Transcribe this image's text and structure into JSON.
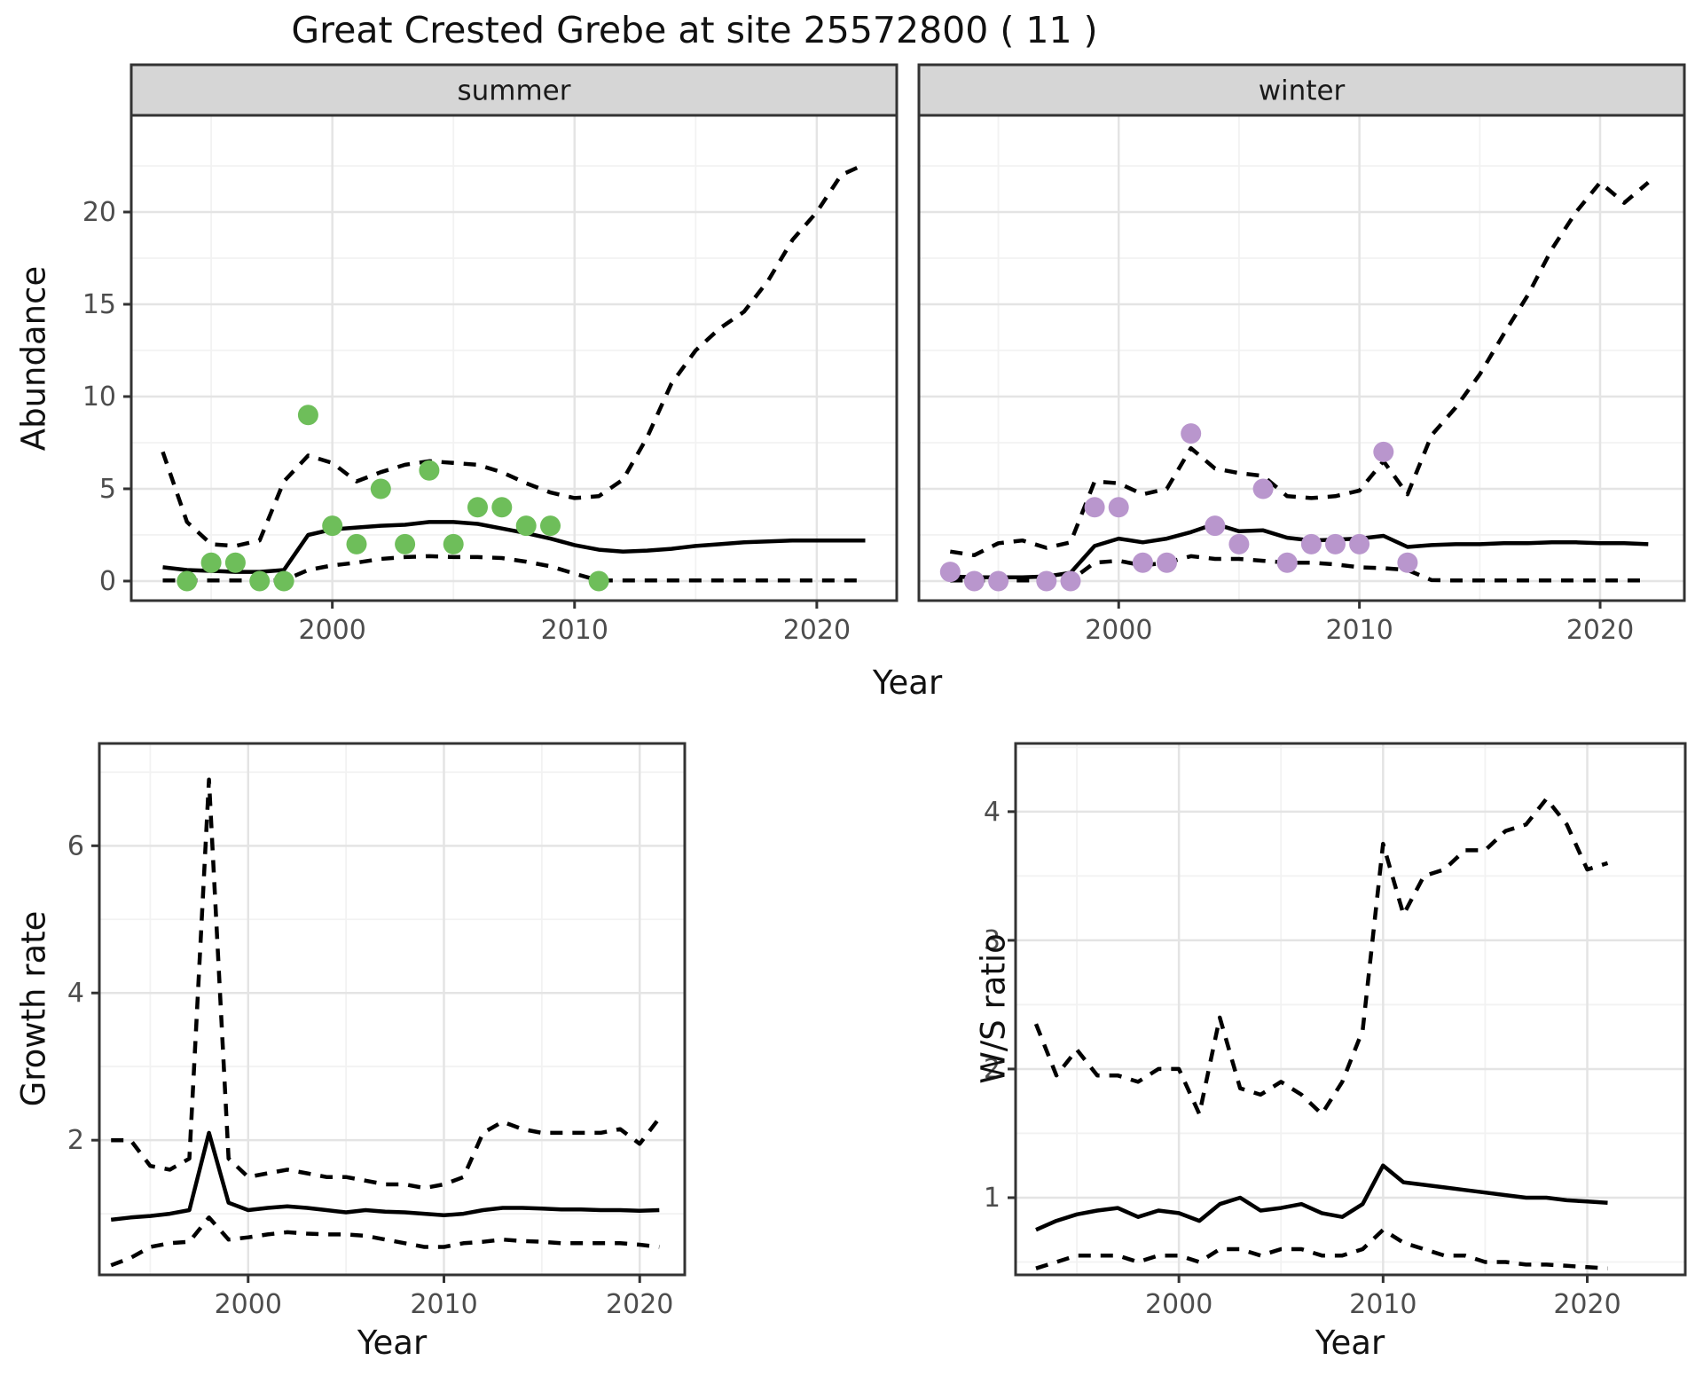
{
  "title": "Great Crested Grebe at site 25572800 ( 11 )",
  "colors": {
    "summer_point": "#6ebe5a",
    "winter_point": "#b996cd",
    "line": "#000000",
    "grid_major": "#e4e4e4",
    "grid_minor": "#f2f2f2",
    "panel_border": "#333333",
    "strip_bg": "#d6d6d6",
    "strip_text": "#1a1a1a",
    "tick_text": "#4d4d4d"
  },
  "chart_data": [
    {
      "id": "summer-abundance",
      "type": "line",
      "facet_label": "summer",
      "ylabel": "Abundance",
      "xlabel": "Year",
      "xlim": [
        1991.7,
        2023.3
      ],
      "ylim": [
        -1.06,
        25.24
      ],
      "xticks": [
        2000,
        2010,
        2020
      ],
      "yticks": [
        0,
        5,
        10,
        15,
        20
      ],
      "x": [
        1993,
        1994,
        1995,
        1996,
        1997,
        1998,
        1999,
        2000,
        2001,
        2002,
        2003,
        2004,
        2005,
        2006,
        2007,
        2008,
        2009,
        2010,
        2011,
        2012,
        2013,
        2014,
        2015,
        2016,
        2017,
        2018,
        2019,
        2020,
        2021,
        2022
      ],
      "series": [
        {
          "name": "mean",
          "style": "solid",
          "values": [
            0.75,
            0.6,
            0.55,
            0.5,
            0.5,
            0.6,
            2.5,
            2.8,
            2.9,
            3.0,
            3.05,
            3.2,
            3.2,
            3.1,
            2.85,
            2.6,
            2.3,
            1.95,
            1.7,
            1.6,
            1.65,
            1.75,
            1.9,
            2.0,
            2.1,
            2.15,
            2.2,
            2.2,
            2.2,
            2.2
          ]
        },
        {
          "name": "upper_ci",
          "style": "dashed",
          "values": [
            7.0,
            3.2,
            2.0,
            1.9,
            2.2,
            5.4,
            6.8,
            6.4,
            5.4,
            5.9,
            6.3,
            6.5,
            6.4,
            6.3,
            5.9,
            5.3,
            4.8,
            4.5,
            4.6,
            5.5,
            7.8,
            10.7,
            12.5,
            13.7,
            14.6,
            16.3,
            18.5,
            20.0,
            22.0,
            22.6
          ]
        },
        {
          "name": "lower_ci",
          "style": "dashed",
          "values": [
            0.03,
            0.03,
            0.03,
            0.03,
            0.03,
            0.03,
            0.6,
            0.85,
            1.0,
            1.2,
            1.3,
            1.35,
            1.3,
            1.3,
            1.25,
            1.05,
            0.8,
            0.4,
            0.03,
            0.03,
            0.03,
            0.03,
            0.03,
            0.03,
            0.03,
            0.03,
            0.03,
            0.03,
            0.03,
            0.03
          ]
        }
      ],
      "points": {
        "name": "observed-counts",
        "color": "#6ebe5a",
        "x": [
          1994,
          1995,
          1996,
          1997,
          1998,
          1999,
          2000,
          2001,
          2002,
          2003,
          2004,
          2005,
          2006,
          2007,
          2008,
          2009,
          2011
        ],
        "y": [
          0,
          1,
          1,
          0,
          0,
          9,
          3,
          2,
          5,
          2,
          6,
          2,
          4,
          4,
          3,
          3,
          0
        ]
      }
    },
    {
      "id": "winter-abundance",
      "type": "line",
      "facet_label": "winter",
      "ylabel": "Abundance",
      "xlabel": "Year",
      "xlim": [
        1991.7,
        2023.5
      ],
      "ylim": [
        -1.06,
        25.24
      ],
      "xticks": [
        2000,
        2010,
        2020
      ],
      "yticks": [
        0,
        5,
        10,
        15,
        20
      ],
      "x": [
        1993,
        1994,
        1995,
        1996,
        1997,
        1998,
        1999,
        2000,
        2001,
        2002,
        2003,
        2004,
        2005,
        2006,
        2007,
        2008,
        2009,
        2010,
        2011,
        2012,
        2013,
        2014,
        2015,
        2016,
        2017,
        2018,
        2019,
        2020,
        2021,
        2022
      ],
      "series": [
        {
          "name": "mean",
          "style": "solid",
          "values": [
            0.25,
            0.2,
            0.2,
            0.2,
            0.25,
            0.45,
            1.9,
            2.3,
            2.1,
            2.3,
            2.65,
            3.1,
            2.7,
            2.75,
            2.35,
            2.2,
            2.25,
            2.3,
            2.45,
            1.85,
            1.95,
            2.0,
            2.0,
            2.05,
            2.05,
            2.1,
            2.1,
            2.05,
            2.05,
            2.0
          ]
        },
        {
          "name": "upper_ci",
          "style": "dashed",
          "values": [
            1.6,
            1.4,
            2.05,
            2.2,
            1.8,
            2.1,
            5.4,
            5.3,
            4.7,
            5.0,
            7.2,
            6.1,
            5.85,
            5.7,
            4.6,
            4.5,
            4.6,
            4.9,
            6.5,
            4.7,
            7.9,
            9.4,
            11.2,
            13.4,
            15.5,
            18.0,
            20.0,
            21.6,
            20.5,
            21.6
          ]
        },
        {
          "name": "lower_ci",
          "style": "dashed",
          "values": [
            0.03,
            0.03,
            0.03,
            0.03,
            0.03,
            0.03,
            1.0,
            1.1,
            0.85,
            1.0,
            1.35,
            1.2,
            1.2,
            1.1,
            1.0,
            1.0,
            0.9,
            0.75,
            0.7,
            0.6,
            0.05,
            0.03,
            0.03,
            0.03,
            0.03,
            0.03,
            0.03,
            0.03,
            0.03,
            0.03
          ]
        }
      ],
      "points": {
        "name": "observed-counts",
        "color": "#b996cd",
        "x": [
          1993,
          1994,
          1995,
          1997,
          1998,
          1999,
          2000,
          2001,
          2002,
          2003,
          2004,
          2005,
          2006,
          2007,
          2008,
          2009,
          2010,
          2011,
          2012
        ],
        "y": [
          0.5,
          0,
          0,
          0,
          0,
          4,
          4,
          1,
          1,
          8,
          3,
          2,
          5,
          1,
          2,
          2,
          2,
          7,
          1
        ]
      }
    },
    {
      "id": "growth-rate",
      "type": "line",
      "facet_label": "",
      "ylabel": "Growth rate",
      "xlabel": "Year",
      "xlim": [
        1992.4,
        2022.3
      ],
      "ylim": [
        0.17,
        7.39
      ],
      "xticks": [
        2000,
        2010,
        2020
      ],
      "yticks": [
        2,
        4,
        6
      ],
      "x": [
        1993,
        1994,
        1995,
        1996,
        1997,
        1998,
        1999,
        2000,
        2001,
        2002,
        2003,
        2004,
        2005,
        2006,
        2007,
        2008,
        2009,
        2010,
        2011,
        2012,
        2013,
        2014,
        2015,
        2016,
        2017,
        2018,
        2019,
        2020,
        2021
      ],
      "series": [
        {
          "name": "mean",
          "style": "solid",
          "values": [
            0.92,
            0.95,
            0.97,
            1.0,
            1.05,
            2.1,
            1.15,
            1.05,
            1.08,
            1.1,
            1.08,
            1.05,
            1.02,
            1.05,
            1.03,
            1.02,
            1.0,
            0.98,
            1.0,
            1.05,
            1.08,
            1.08,
            1.07,
            1.06,
            1.06,
            1.05,
            1.05,
            1.04,
            1.05
          ]
        },
        {
          "name": "upper_ci",
          "style": "dashed",
          "values": [
            2.0,
            2.0,
            1.65,
            1.6,
            1.75,
            6.9,
            1.75,
            1.5,
            1.55,
            1.6,
            1.55,
            1.5,
            1.5,
            1.45,
            1.4,
            1.4,
            1.35,
            1.4,
            1.5,
            2.1,
            2.25,
            2.15,
            2.1,
            2.1,
            2.1,
            2.1,
            2.15,
            1.95,
            2.3
          ]
        },
        {
          "name": "lower_ci",
          "style": "dashed",
          "values": [
            0.3,
            0.4,
            0.55,
            0.6,
            0.62,
            0.95,
            0.65,
            0.68,
            0.72,
            0.75,
            0.73,
            0.72,
            0.72,
            0.7,
            0.65,
            0.6,
            0.55,
            0.55,
            0.6,
            0.62,
            0.65,
            0.63,
            0.62,
            0.6,
            0.6,
            0.6,
            0.6,
            0.58,
            0.55
          ]
        }
      ],
      "points": null
    },
    {
      "id": "ws-ratio",
      "type": "line",
      "facet_label": "",
      "ylabel": "W/S ratio",
      "xlabel": "Year",
      "xlim": [
        1992.0,
        2024.8
      ],
      "ylim": [
        0.4,
        4.53
      ],
      "xticks": [
        2000,
        2010,
        2020
      ],
      "yticks": [
        1,
        2,
        3,
        4
      ],
      "x": [
        1993,
        1994,
        1995,
        1996,
        1997,
        1998,
        1999,
        2000,
        2001,
        2002,
        2003,
        2004,
        2005,
        2006,
        2007,
        2008,
        2009,
        2010,
        2011,
        2012,
        2013,
        2014,
        2015,
        2016,
        2017,
        2018,
        2019,
        2020,
        2021
      ],
      "series": [
        {
          "name": "mean",
          "style": "solid",
          "values": [
            0.75,
            0.82,
            0.87,
            0.9,
            0.92,
            0.85,
            0.9,
            0.88,
            0.82,
            0.95,
            1.0,
            0.9,
            0.92,
            0.95,
            0.88,
            0.85,
            0.95,
            1.25,
            1.12,
            1.1,
            1.08,
            1.06,
            1.04,
            1.02,
            1.0,
            1.0,
            0.98,
            0.97,
            0.96
          ]
        },
        {
          "name": "upper_ci",
          "style": "dashed",
          "values": [
            2.35,
            1.95,
            2.15,
            1.95,
            1.95,
            1.9,
            2.0,
            2.0,
            1.65,
            2.4,
            1.85,
            1.8,
            1.9,
            1.8,
            1.65,
            1.9,
            2.3,
            3.75,
            3.2,
            3.5,
            3.55,
            3.7,
            3.7,
            3.85,
            3.9,
            4.1,
            3.9,
            3.55,
            3.6
          ]
        },
        {
          "name": "lower_ci",
          "style": "dashed",
          "values": [
            0.45,
            0.5,
            0.55,
            0.55,
            0.55,
            0.5,
            0.55,
            0.55,
            0.5,
            0.6,
            0.6,
            0.55,
            0.6,
            0.6,
            0.55,
            0.55,
            0.6,
            0.75,
            0.65,
            0.6,
            0.55,
            0.55,
            0.5,
            0.5,
            0.48,
            0.48,
            0.47,
            0.46,
            0.45
          ]
        }
      ],
      "points": null
    }
  ]
}
